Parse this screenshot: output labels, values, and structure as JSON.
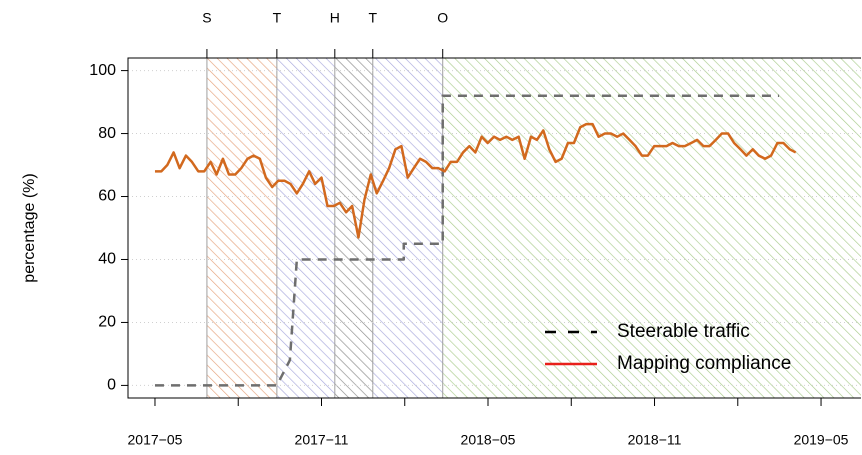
{
  "chart_data": {
    "type": "line",
    "y_label": "percentage (%)",
    "xlim": [
      2017.252,
      2019.453
    ],
    "ylim": [
      -4,
      104
    ],
    "xticks": [
      {
        "value": 2017.333,
        "label": "2017−05"
      },
      {
        "value": 2017.583,
        "label": null
      },
      {
        "value": 2017.833,
        "label": "2017−11"
      },
      {
        "value": 2018.083,
        "label": null
      },
      {
        "value": 2018.333,
        "label": "2018−05"
      },
      {
        "value": 2018.583,
        "label": null
      },
      {
        "value": 2018.833,
        "label": "2018−11"
      },
      {
        "value": 2019.083,
        "label": null
      },
      {
        "value": 2019.333,
        "label": "2019−05"
      }
    ],
    "yticks": [
      0,
      20,
      40,
      60,
      80,
      100
    ],
    "grid": true,
    "legend": "bottomright",
    "regions": [
      {
        "label": "S",
        "start": 2017.489,
        "end": 2017.699,
        "color": "#e6a27c"
      },
      {
        "label": "T",
        "start": 2017.699,
        "end": 2017.873,
        "color": "#a8a8dc"
      },
      {
        "label": "H",
        "start": 2017.873,
        "end": 2017.987,
        "color": "#8a8a8a"
      },
      {
        "label": "T",
        "start": 2017.987,
        "end": 2018.197,
        "color": "#a8a8dc"
      },
      {
        "label": "O",
        "start": 2018.197,
        "end": 2019.5,
        "color": "#a9cc8c"
      }
    ],
    "series": [
      {
        "name": "Steerable traffic",
        "color": "#6e6e6e",
        "legend_color": "#000000",
        "dash": true,
        "x": [
          2017.333,
          2017.699,
          2017.738,
          2017.759,
          2018.08,
          2018.08,
          2018.197,
          2018.197,
          2019.207
        ],
        "values": [
          0,
          0,
          8,
          40,
          40,
          45,
          45,
          92,
          92
        ]
      },
      {
        "name": "Mapping compliance",
        "color": "#d2691e",
        "legend_color": "#e8201a",
        "dash": false,
        "x": [
          2017.333,
          2017.352,
          2017.37,
          2017.389,
          2017.407,
          2017.426,
          2017.444,
          2017.463,
          2017.481,
          2017.5,
          2017.518,
          2017.537,
          2017.555,
          2017.574,
          2017.592,
          2017.611,
          2017.629,
          2017.648,
          2017.666,
          2017.685,
          2017.703,
          2017.722,
          2017.74,
          2017.759,
          2017.777,
          2017.796,
          2017.814,
          2017.833,
          2017.851,
          2017.87,
          2017.888,
          2017.907,
          2017.925,
          2017.944,
          2017.962,
          2017.981,
          2017.999,
          2018.018,
          2018.036,
          2018.055,
          2018.073,
          2018.092,
          2018.11,
          2018.129,
          2018.147,
          2018.166,
          2018.184,
          2018.203,
          2018.221,
          2018.24,
          2018.258,
          2018.277,
          2018.295,
          2018.314,
          2018.332,
          2018.351,
          2018.369,
          2018.388,
          2018.406,
          2018.425,
          2018.443,
          2018.462,
          2018.48,
          2018.499,
          2018.517,
          2018.536,
          2018.554,
          2018.573,
          2018.591,
          2018.61,
          2018.628,
          2018.647,
          2018.665,
          2018.684,
          2018.702,
          2018.721,
          2018.739,
          2018.758,
          2018.776,
          2018.795,
          2018.813,
          2018.832,
          2018.85,
          2018.869,
          2018.887,
          2018.906,
          2018.924,
          2018.943,
          2018.961,
          2018.98,
          2018.998,
          2019.017,
          2019.035,
          2019.054,
          2019.072,
          2019.091,
          2019.109,
          2019.128,
          2019.146,
          2019.165,
          2019.183,
          2019.202,
          2019.22,
          2019.239,
          2019.257
        ],
        "values": [
          68,
          68,
          70,
          74,
          69,
          73,
          71,
          68,
          68,
          71,
          67,
          72,
          67,
          67,
          69,
          72,
          73,
          72,
          66,
          63,
          65,
          65,
          64,
          61,
          64,
          68,
          64,
          66,
          57,
          57,
          58,
          55,
          57,
          47,
          59,
          67,
          61,
          65,
          69,
          75,
          76,
          66,
          69,
          72,
          71,
          69,
          69,
          68,
          71,
          71,
          74,
          76,
          74,
          79,
          77,
          79,
          78,
          79,
          78,
          79,
          72,
          79,
          78,
          81,
          75,
          71,
          72,
          77,
          77,
          82,
          83,
          83,
          79,
          80,
          80,
          79,
          80,
          78,
          76,
          73,
          73,
          76,
          76,
          76,
          77,
          76,
          76,
          77,
          78,
          76,
          76,
          78,
          80,
          80,
          77,
          75,
          73,
          75,
          73,
          72,
          73,
          77,
          77,
          75,
          74
        ]
      }
    ]
  }
}
